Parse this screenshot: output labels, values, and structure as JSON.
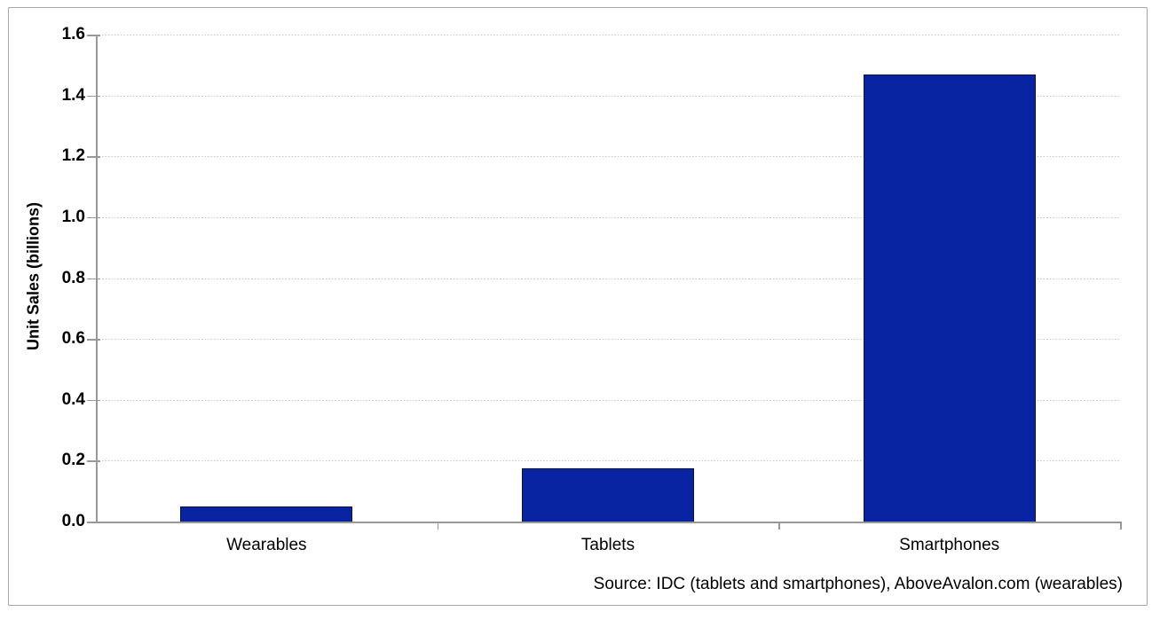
{
  "chart_data": {
    "type": "bar",
    "title": "",
    "categories": [
      "Wearables",
      "Tablets",
      "Smartphones"
    ],
    "values": [
      0.05,
      0.175,
      1.47
    ],
    "xlabel": "",
    "ylabel": "Unit Sales (billions)",
    "ylim": [
      0,
      1.6
    ],
    "ytick_step": 0.2,
    "ytick_labels": [
      "0.0",
      "0.2",
      "0.4",
      "0.6",
      "0.8",
      "1.0",
      "1.2",
      "1.4",
      "1.6"
    ],
    "grid": "horizontal-dotted",
    "legend": "none",
    "source_note": "Source: IDC (tablets and smartphones), AboveAvalon.com (wearables)"
  },
  "colors": {
    "bar_fill": "#0824a3",
    "bar_border": "#0c1038",
    "gridline": "#c5c5c5",
    "axis": "#989898",
    "frame_border": "#a6a6a6",
    "text": "#000000",
    "background": "#ffffff"
  }
}
